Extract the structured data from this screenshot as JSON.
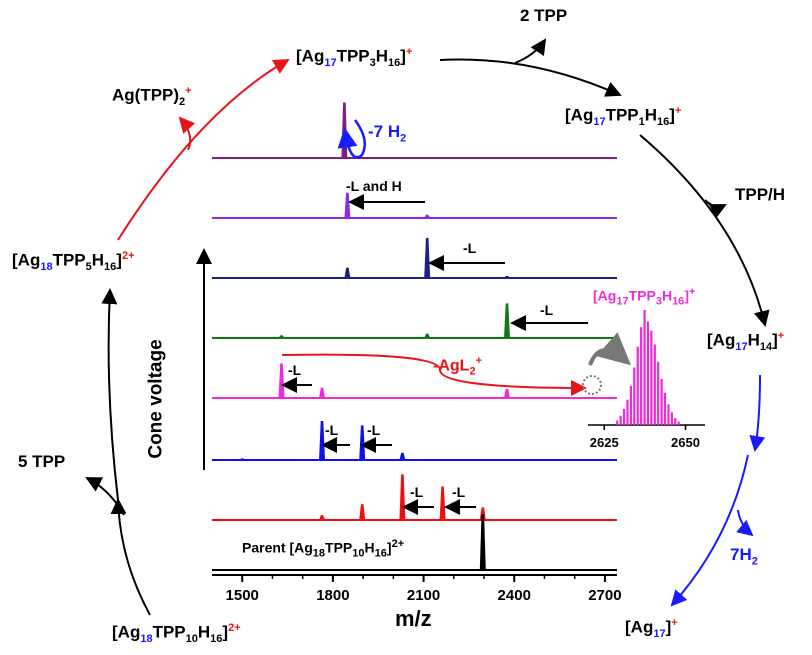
{
  "colors": {
    "black": "#000000",
    "red": "#e8141b",
    "blue": "#1a1aff",
    "purple_dark": "#7b2183",
    "purple": "#8a2be2",
    "navy": "#1a237e",
    "green": "#127a12",
    "magenta": "#ee2ad6",
    "ms_blue": "#1010ee",
    "ms_red": "#ee1010"
  },
  "cycle": {
    "top": {
      "pre": "[Ag",
      "n": "17",
      "mid": "TPP",
      "l": "3",
      "h": "H",
      "hn": "16",
      "post": "]",
      "charge": "+"
    },
    "top_right": {
      "pre": "[Ag",
      "n": "17",
      "mid": "TPP",
      "l": "1",
      "h": "H",
      "hn": "16",
      "post": "]",
      "charge": "+"
    },
    "right": {
      "pre": "[Ag",
      "n": "17",
      "h": "H",
      "hn": "14",
      "post": "]",
      "charge": "+"
    },
    "bottom_right": {
      "pre": "[Ag",
      "n": "17",
      "post": "]",
      "charge": "+"
    },
    "bottom_left": {
      "pre": "[Ag",
      "n": "18",
      "mid": "TPP",
      "l": "10",
      "h": "H",
      "hn": "16",
      "post": "]",
      "charge": "2+"
    },
    "left": {
      "pre": "[Ag",
      "n": "18",
      "mid": "TPP",
      "l": "5",
      "h": "H",
      "hn": "16",
      "post": "]",
      "charge": "2+"
    },
    "loss_2tpp": "2 TPP",
    "loss_tpph": "TPP/H",
    "loss_7h2": {
      "pre": "7H",
      "sub": "2"
    },
    "loss_5tpp": "5 TPP",
    "ag_tpp2": {
      "pre": "Ag(TPP)",
      "sub": "2",
      "charge": "+"
    }
  },
  "spectrum": {
    "x_axis": {
      "label": "m/z",
      "ticks": [
        "1500",
        "1800",
        "2100",
        "2400",
        "2700"
      ],
      "min": 1400,
      "max": 2740
    },
    "y_axis": {
      "label": "Cone voltage"
    },
    "parent_label": {
      "pre": "Parent [Ag",
      "n": "18",
      "mid": "TPP",
      "l": "10",
      "h": "H",
      "hn": "16",
      "post": "]",
      "charge": "2+"
    },
    "annotations": {
      "minus_7h2": {
        "pre": "-7 H",
        "sub": "2"
      },
      "minus_l_and_h": "-L and H",
      "minus_l": "-L",
      "minus_agl2": {
        "pre": "-AgL",
        "sub": "2",
        "charge": "+"
      }
    },
    "inset": {
      "title": {
        "pre": "[Ag",
        "n": "17",
        "mid": "TPP",
        "l": "3",
        "h": "H",
        "hn": "16",
        "post": "]",
        "charge": "+"
      },
      "ticks": [
        "2625",
        "2650"
      ],
      "min": 2620,
      "max": 2656
    },
    "traces": [
      {
        "name": "trace-1",
        "color": "#7b2183",
        "peaks": [
          {
            "mz": 1838,
            "h": 1.0
          }
        ]
      },
      {
        "name": "trace-2",
        "color": "#8a2be2",
        "peaks": [
          {
            "mz": 1848,
            "h": 0.45
          },
          {
            "mz": 2112,
            "h": 0.05
          }
        ]
      },
      {
        "name": "trace-3",
        "color": "#1a237e",
        "peaks": [
          {
            "mz": 1848,
            "h": 0.18
          },
          {
            "mz": 2112,
            "h": 0.72
          },
          {
            "mz": 2376,
            "h": 0.03
          }
        ]
      },
      {
        "name": "trace-4",
        "color": "#127a12",
        "peaks": [
          {
            "mz": 1630,
            "h": 0.04
          },
          {
            "mz": 2112,
            "h": 0.07
          },
          {
            "mz": 2376,
            "h": 0.62
          }
        ]
      },
      {
        "name": "trace-5",
        "color": "#ee2ad6",
        "peaks": [
          {
            "mz": 1630,
            "h": 0.62
          },
          {
            "mz": 1764,
            "h": 0.18
          },
          {
            "mz": 2376,
            "h": 0.16
          }
        ]
      },
      {
        "name": "trace-6",
        "color": "#1010ee",
        "peaks": [
          {
            "mz": 1764,
            "h": 0.7
          },
          {
            "mz": 1897,
            "h": 0.62
          },
          {
            "mz": 2030,
            "h": 0.12
          },
          {
            "mz": 1500,
            "h": 0.02
          }
        ]
      },
      {
        "name": "trace-7",
        "color": "#ee1010",
        "peaks": [
          {
            "mz": 1764,
            "h": 0.08
          },
          {
            "mz": 1897,
            "h": 0.28
          },
          {
            "mz": 2030,
            "h": 0.82
          },
          {
            "mz": 2163,
            "h": 0.6
          },
          {
            "mz": 2296,
            "h": 0.22
          }
        ]
      },
      {
        "name": "trace-8",
        "color": "#000000",
        "peaks": [
          {
            "mz": 2296,
            "h": 1.0
          }
        ]
      }
    ]
  }
}
